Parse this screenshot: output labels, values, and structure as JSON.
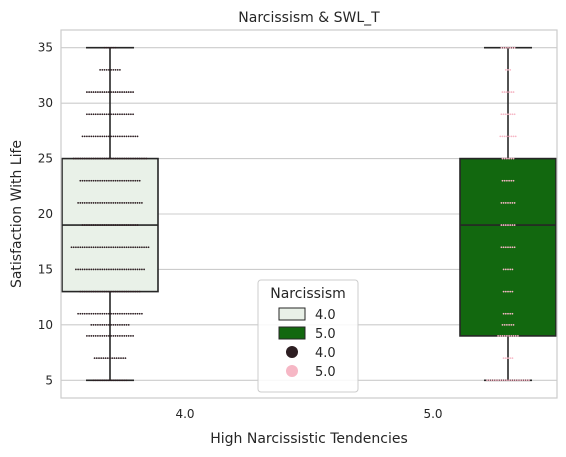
{
  "chart_data": {
    "type": "box",
    "title": "Narcissism & SWL_T",
    "xlabel": "High Narcissistic Tendencies",
    "ylabel": "Satisfaction With Life",
    "ylim": [
      3.4,
      36.6
    ],
    "yticks": [
      5,
      10,
      15,
      20,
      25,
      30,
      35
    ],
    "grid": true,
    "categories": [
      "4.0",
      "5.0"
    ],
    "box_series": [
      {
        "name": "4.0",
        "category": "4.0",
        "color": "#e9f1e8",
        "whisker_low": 5,
        "q1": 13,
        "median": 19,
        "q3": 25,
        "whisker_high": 35
      },
      {
        "name": "5.0",
        "category": "5.0",
        "color": "#12680f",
        "whisker_low": 5,
        "q1": 9,
        "median": 19,
        "q3": 25,
        "whisker_high": 35
      }
    ],
    "swarm_series": [
      {
        "name": "4.0",
        "category": "4.0",
        "color": "#2d1e22",
        "points": [
          [
            5,
            16
          ],
          [
            7,
            15
          ],
          [
            9,
            22
          ],
          [
            10,
            18
          ],
          [
            11,
            30
          ],
          [
            13,
            28
          ],
          [
            15,
            32
          ],
          [
            17,
            36
          ],
          [
            19,
            26
          ],
          [
            21,
            30
          ],
          [
            23,
            28
          ],
          [
            25,
            34
          ],
          [
            27,
            26
          ],
          [
            29,
            22
          ],
          [
            31,
            22
          ],
          [
            33,
            10
          ],
          [
            35,
            6
          ]
        ]
      },
      {
        "name": "5.0",
        "category": "5.0",
        "color": "#f6b7c5",
        "points": [
          [
            5,
            20
          ],
          [
            7,
            5
          ],
          [
            9,
            10
          ],
          [
            10,
            6
          ],
          [
            11,
            5
          ],
          [
            13,
            5
          ],
          [
            15,
            5
          ],
          [
            17,
            7
          ],
          [
            19,
            7
          ],
          [
            21,
            7
          ],
          [
            23,
            6
          ],
          [
            25,
            6
          ],
          [
            27,
            8
          ],
          [
            29,
            7
          ],
          [
            31,
            6
          ],
          [
            33,
            3
          ],
          [
            35,
            7
          ]
        ]
      }
    ],
    "legend": {
      "title": "Narcissism",
      "placement": "lower-center",
      "entries": [
        {
          "kind": "box",
          "label": "4.0",
          "color": "#e9f1e8"
        },
        {
          "kind": "box",
          "label": "5.0",
          "color": "#12680f"
        },
        {
          "kind": "point",
          "label": "4.0",
          "color": "#2d1e22"
        },
        {
          "kind": "point",
          "label": "5.0",
          "color": "#f6b7c5"
        }
      ]
    }
  }
}
